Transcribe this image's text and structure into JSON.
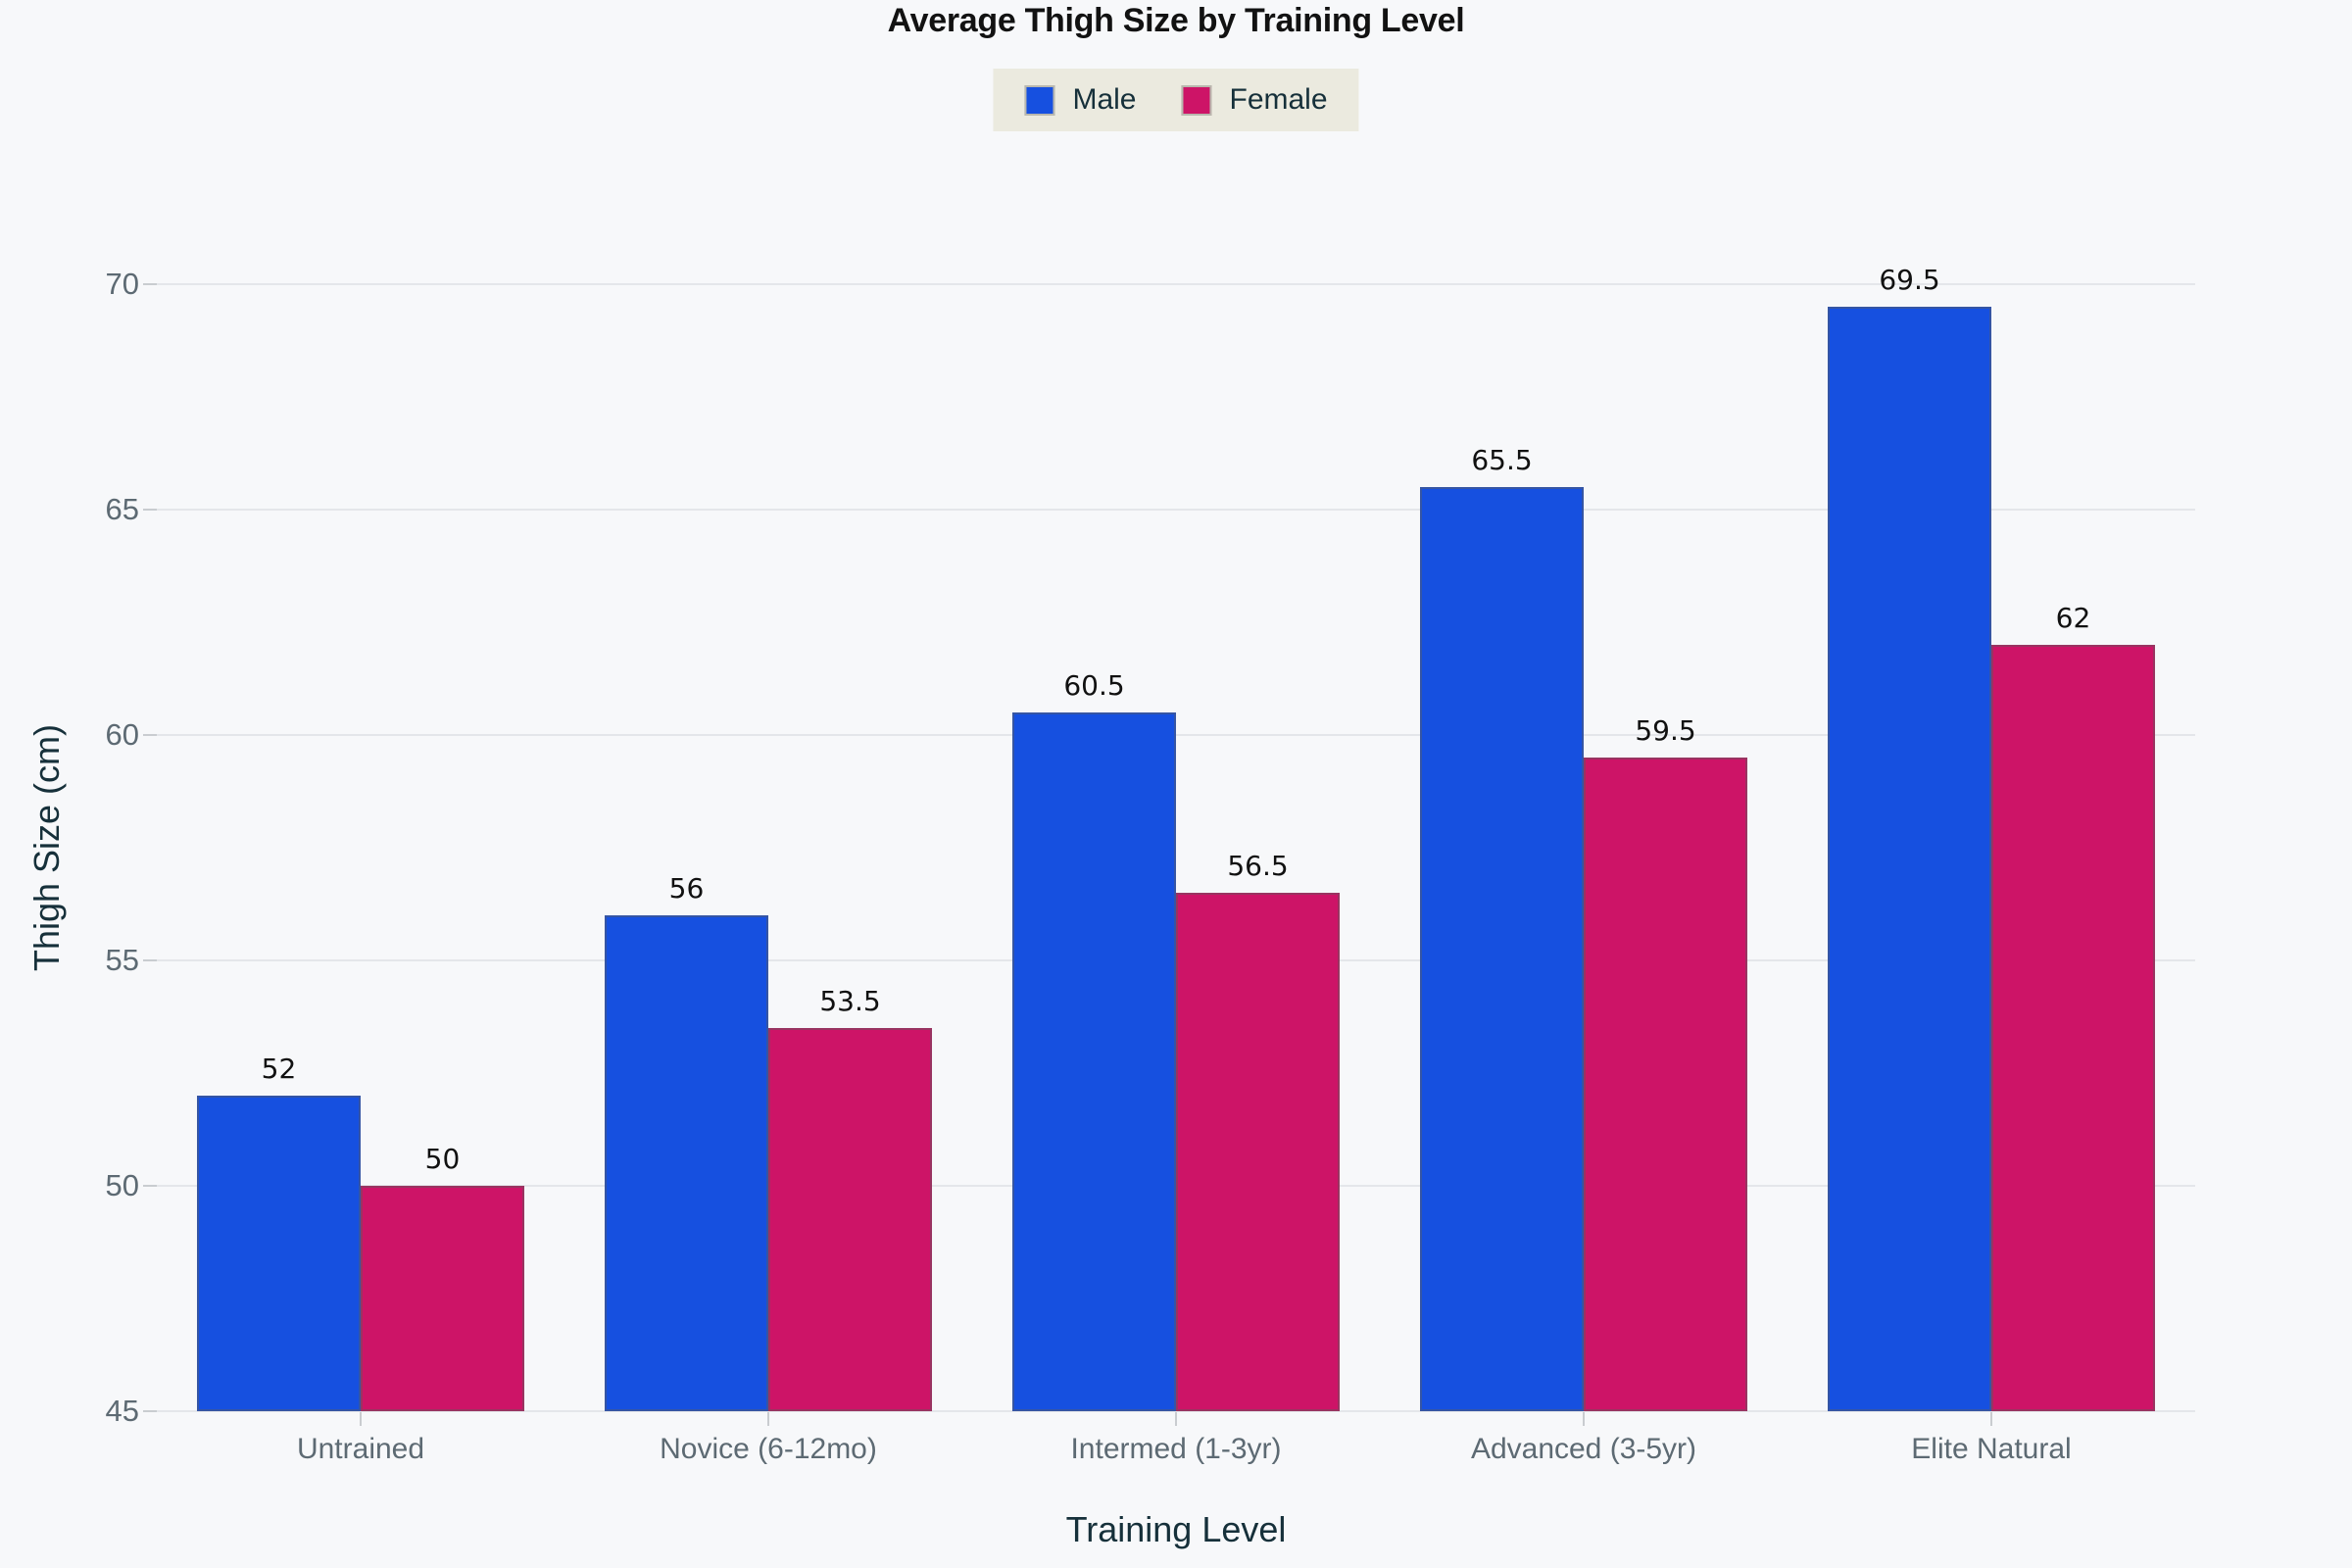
{
  "chart_data": {
    "type": "bar",
    "title": "Average Thigh Size by Training Level",
    "xlabel": "Training Level",
    "ylabel": "Thigh Size (cm)",
    "categories": [
      "Untrained",
      "Novice (6-12mo)",
      "Intermed (1-3yr)",
      "Advanced (3-5yr)",
      "Elite Natural"
    ],
    "series": [
      {
        "name": "Male",
        "color": "#1650e0",
        "values": [
          52,
          56,
          60.5,
          65.5,
          69.5
        ]
      },
      {
        "name": "Female",
        "color": "#cd1467",
        "values": [
          50,
          53.5,
          56.5,
          59.5,
          62
        ]
      }
    ],
    "ylim": [
      45,
      70
    ],
    "yticks": [
      45,
      50,
      55,
      60,
      65,
      70
    ],
    "grid": true,
    "legend_position": "top",
    "value_labels": [
      "52",
      "50",
      "56",
      "53.5",
      "60.5",
      "56.5",
      "65.5",
      "59.5",
      "69.5",
      "62"
    ]
  },
  "styles": {
    "background": "#f7f8fa",
    "grid_color": "#e4e6ea",
    "tick_mark_color": "#c9ccd0",
    "tick_label_color": "#5d6a73",
    "axis_title_color": "#16303a",
    "title_color": "#121212",
    "value_label_color": "#111111",
    "legend_bg": "#ebeadf",
    "legend_text": "#16303a"
  }
}
